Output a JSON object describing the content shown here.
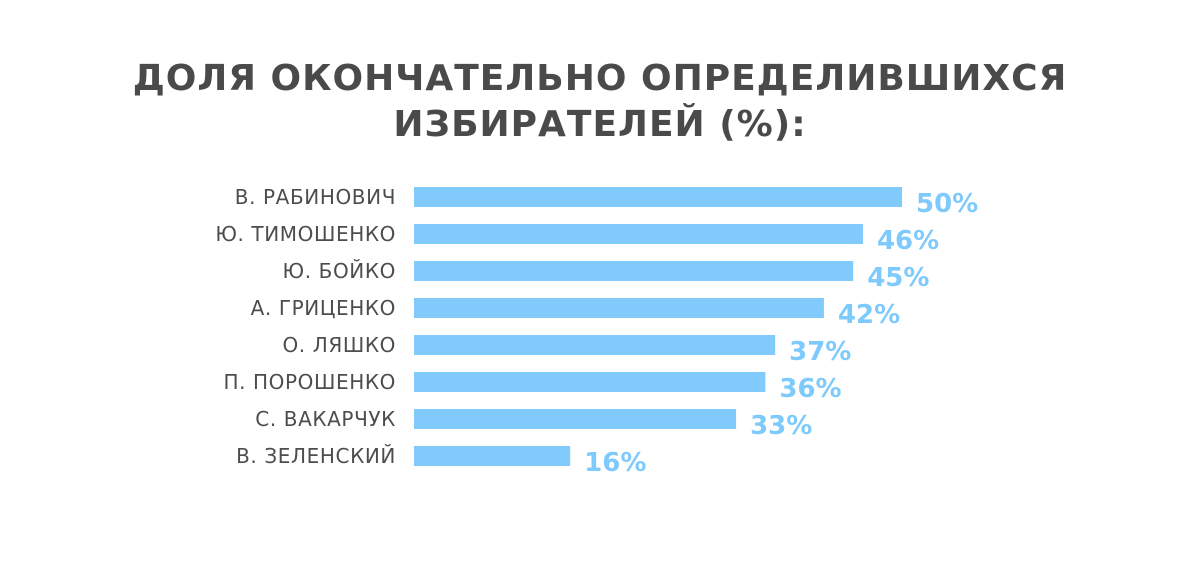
{
  "colors": {
    "bar": "#80cbfc",
    "value_label": "#7ecafc",
    "title": "#4a4a4a",
    "category_label": "#4d4d4d"
  },
  "chart_data": {
    "type": "bar",
    "orientation": "horizontal",
    "title_lines": [
      "ДОЛЯ ОКОНЧАТЕЛЬНО ОПРЕДЕЛИВШИХСЯ",
      "ИЗБИРАТЕЛЕЙ (%):"
    ],
    "categories": [
      "В. РАБИНОВИЧ",
      "Ю. ТИМОШЕНКО",
      "Ю. БОЙКО",
      "А. ГРИЦЕНКО",
      "О. ЛЯШКО",
      "П. ПОРОШЕНКО",
      "С. ВАКАРЧУК",
      "В. ЗЕЛЕНСКИЙ"
    ],
    "values": [
      50,
      46,
      45,
      42,
      37,
      36,
      33,
      16
    ],
    "value_labels": [
      "50%",
      "46%",
      "45%",
      "42%",
      "37%",
      "36%",
      "33%",
      "16%"
    ],
    "grid": false,
    "axes_visible": false,
    "legend": "none"
  }
}
